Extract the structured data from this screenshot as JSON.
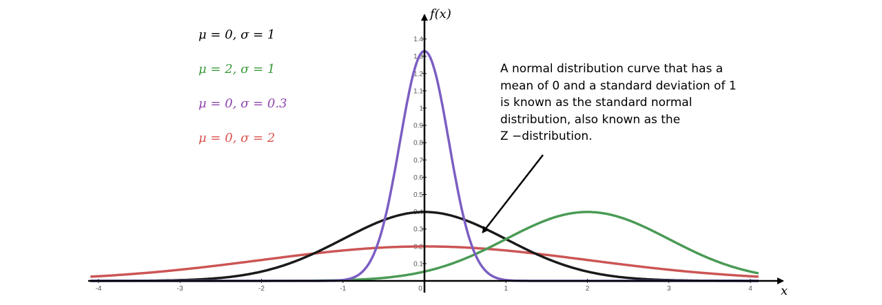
{
  "chart_data": {
    "type": "line",
    "title": "",
    "xlabel": "x",
    "ylabel": "f(x)",
    "xlim": [
      -4,
      4
    ],
    "ylim": [
      0,
      1.4
    ],
    "grid": false,
    "legend_placement": "top-left",
    "x_ticks": [
      -4,
      -3,
      -2,
      -1,
      0,
      1,
      2,
      3,
      4
    ],
    "y_ticks": [
      0.1,
      0.2,
      0.3,
      0.4,
      0.5,
      0.6,
      0.7,
      0.8,
      0.9,
      1,
      1.1,
      1.2,
      1.3,
      1.4
    ],
    "x_tick_labels": [
      "-4",
      "-3",
      "-2",
      "-1",
      "0",
      "1",
      "2",
      "3",
      "4"
    ],
    "y_tick_labels": [
      "0.1",
      "0.2",
      "0.3",
      "0.4",
      "0.5",
      "0.6",
      "0.7",
      "0.8",
      "0.9",
      "1",
      "1.1",
      "1.2",
      "1.3",
      "1.4"
    ],
    "series": [
      {
        "name": "μ = 0, σ = 1",
        "mu": 0,
        "sigma": 1,
        "color": "#000000"
      },
      {
        "name": "μ = 2, σ = 1",
        "mu": 2,
        "sigma": 1,
        "color": "#3a9a3a"
      },
      {
        "name": "μ = 0, σ = 0.3",
        "mu": 0,
        "sigma": 0.3,
        "color": "#8e44ad"
      },
      {
        "name": "μ = 0, σ = 2",
        "mu": 0,
        "sigma": 2,
        "color": "#d9534f"
      }
    ],
    "curve_colors": [
      "#1a1a1a",
      "#4a9a55",
      "#7b5ec2",
      "#cc5555"
    ],
    "annotation": {
      "lines": [
        "A normal distribution curve that has a",
        "mean of 0 and a standard deviation of 1",
        "is known as the standard normal",
        "distribution, also known as the",
        "Z −distribution."
      ],
      "points_to_series": "μ = 0, σ = 1",
      "points_to_x": 0.75
    }
  }
}
